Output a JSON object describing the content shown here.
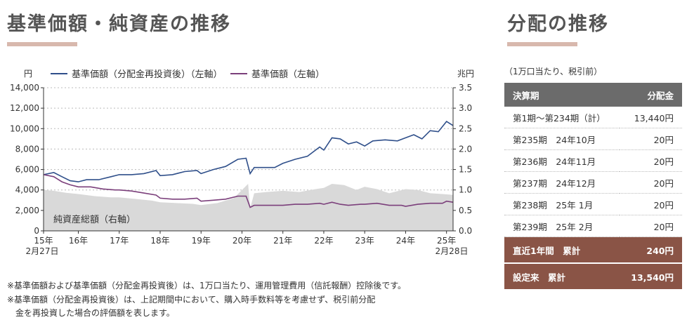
{
  "left_title": "基準価額・純資産の推移",
  "right_title": "分配の推移",
  "chart_data": {
    "type": "line",
    "y_left_unit": "円",
    "y_right_unit": "兆円",
    "y_left_ticks": [
      "14,000",
      "12,000",
      "10,000",
      "8,000",
      "6,000",
      "4,000",
      "2,000",
      "0"
    ],
    "y_right_ticks": [
      "3.5",
      "3.0",
      "2.5",
      "2.0",
      "1.5",
      "1.0",
      "0.5",
      "0.0"
    ],
    "ylim_left": [
      0,
      14000
    ],
    "ylim_right": [
      0,
      3.5
    ],
    "x_ticks": [
      "15年",
      "16年",
      "17年",
      "18年",
      "19年",
      "20年",
      "21年",
      "22年",
      "23年",
      "24年",
      "25年"
    ],
    "x_tick_values": [
      2015.15,
      2016,
      2017,
      2018,
      2019,
      2020,
      2021,
      2022,
      2023,
      2024,
      2025
    ],
    "x_start_label": "2月27日",
    "x_end_label": "2月28日",
    "xlim": [
      2015.15,
      2025.16
    ],
    "legend": [
      "基準価額（分配金再投資後）（左軸）",
      "基準価額（左軸）"
    ],
    "area_label": "純資産総額（右軸）",
    "series": [
      {
        "name": "基準価額（分配金再投資後）（左軸）",
        "color": "#2f4f8a",
        "axis": "left",
        "x": [
          2015.15,
          2015.4,
          2015.6,
          2015.8,
          2016.0,
          2016.2,
          2016.5,
          2016.8,
          2017.0,
          2017.3,
          2017.6,
          2017.9,
          2018.0,
          2018.3,
          2018.6,
          2018.9,
          2019.0,
          2019.3,
          2019.6,
          2019.9,
          2020.1,
          2020.2,
          2020.3,
          2020.5,
          2020.8,
          2021.0,
          2021.3,
          2021.6,
          2021.9,
          2022.0,
          2022.2,
          2022.4,
          2022.6,
          2022.8,
          2023.0,
          2023.2,
          2023.5,
          2023.8,
          2024.0,
          2024.2,
          2024.4,
          2024.6,
          2024.8,
          2025.0,
          2025.16
        ],
        "values": [
          5500,
          5700,
          5300,
          4900,
          4800,
          5000,
          5000,
          5300,
          5500,
          5500,
          5600,
          5900,
          5400,
          5500,
          5800,
          5900,
          5600,
          6000,
          6300,
          7000,
          7100,
          5600,
          6200,
          6200,
          6200,
          6600,
          7000,
          7300,
          8200,
          7900,
          9100,
          9000,
          8500,
          8700,
          8300,
          8800,
          8900,
          8800,
          9100,
          9400,
          9000,
          9800,
          9700,
          10700,
          10300
        ]
      },
      {
        "name": "基準価額（左軸）",
        "color": "#7b3f7b",
        "axis": "left",
        "x": [
          2015.15,
          2015.4,
          2015.6,
          2015.8,
          2016.0,
          2016.3,
          2016.6,
          2016.9,
          2017.0,
          2017.3,
          2017.6,
          2017.9,
          2018.0,
          2018.3,
          2018.6,
          2018.9,
          2019.0,
          2019.3,
          2019.6,
          2019.9,
          2020.1,
          2020.2,
          2020.3,
          2020.6,
          2020.9,
          2021.0,
          2021.3,
          2021.6,
          2021.9,
          2022.0,
          2022.2,
          2022.4,
          2022.6,
          2022.9,
          2023.0,
          2023.3,
          2023.6,
          2023.9,
          2024.0,
          2024.3,
          2024.6,
          2024.9,
          2025.0,
          2025.16
        ],
        "values": [
          5500,
          5300,
          4800,
          4500,
          4300,
          4300,
          4100,
          4000,
          4000,
          3900,
          3700,
          3500,
          3200,
          3100,
          3100,
          3200,
          2900,
          3000,
          3100,
          3400,
          3400,
          2300,
          2500,
          2500,
          2500,
          2500,
          2600,
          2600,
          2700,
          2600,
          2800,
          2600,
          2500,
          2600,
          2600,
          2700,
          2500,
          2500,
          2400,
          2600,
          2700,
          2700,
          2900,
          2800
        ]
      }
    ],
    "area": {
      "name": "純資産総額（右軸）",
      "color": "#d9d9d9",
      "axis": "right",
      "x": [
        2015.15,
        2015.4,
        2015.7,
        2016.0,
        2016.4,
        2016.8,
        2017.0,
        2017.4,
        2017.8,
        2018.0,
        2018.4,
        2018.8,
        2019.0,
        2019.4,
        2019.8,
        2020.0,
        2020.15,
        2020.2,
        2020.3,
        2020.6,
        2021.0,
        2021.4,
        2021.8,
        2022.0,
        2022.2,
        2022.5,
        2022.8,
        2023.0,
        2023.3,
        2023.6,
        2024.0,
        2024.3,
        2024.6,
        2024.9,
        2025.16
      ],
      "values": [
        1.0,
        0.98,
        0.93,
        0.9,
        0.85,
        0.82,
        0.82,
        0.78,
        0.74,
        0.7,
        0.68,
        0.66,
        0.63,
        0.68,
        0.8,
        1.0,
        1.15,
        0.55,
        0.92,
        0.95,
        0.98,
        0.95,
        1.02,
        1.05,
        1.15,
        1.12,
        1.0,
        1.08,
        1.02,
        0.92,
        1.02,
        1.0,
        0.92,
        0.9,
        0.88
      ]
    }
  },
  "notes": [
    "※基準価額および基準価額（分配金再投資後）は、1万口当たり、運用管理費用（信託報酬）控除後です。",
    "※基準価額（分配金再投資後）は、上記期間中において、購入時手数料等を考慮せず、税引前分配",
    "　金を再投資した場合の評価額を表します。"
  ],
  "table": {
    "unit_note": "（1万口当たり、税引前）",
    "headers": [
      "決算期",
      "分配金"
    ],
    "rows": [
      [
        "第1期～第234期（計）",
        "13,440円"
      ],
      [
        "第235期　24年10月",
        "20円"
      ],
      [
        "第236期　24年11月",
        "20円"
      ],
      [
        "第237期　24年12月",
        "20円"
      ],
      [
        "第238期　25年  1月",
        "20円"
      ],
      [
        "第239期　25年  2月",
        "20円"
      ]
    ],
    "totals": [
      [
        "直近1年間　累計",
        "240円"
      ],
      [
        "設定来　累計",
        "13,540円"
      ]
    ]
  }
}
